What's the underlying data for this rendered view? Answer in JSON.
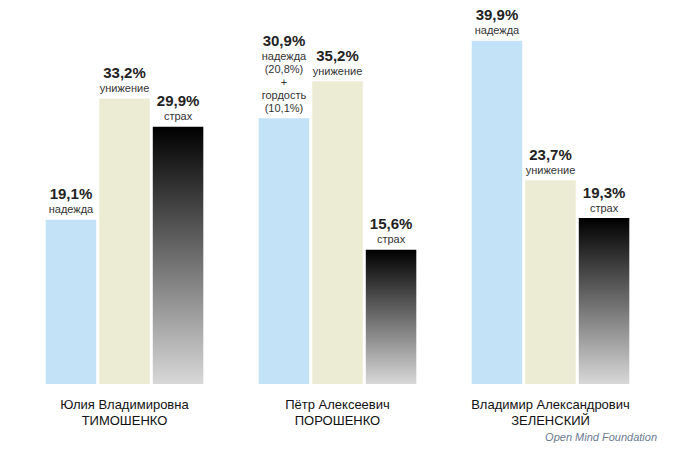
{
  "chart_data": {
    "type": "bar",
    "categories": [
      "Юлия Владимировна\nТИМОШЕНКО",
      "Пётр Алексеевич\nПОРОШЕНКО",
      "Владимир Александрович\nЗЕЛЕНСКИЙ"
    ],
    "series": [
      {
        "name": "надежда",
        "color": "#c4e2f7",
        "values": [
          19.1,
          30.9,
          39.9
        ],
        "value_labels": [
          "19,1%",
          "30,9%",
          "39,9%"
        ],
        "point_labels": [
          null,
          "надежда\n(20,8%)\n+\nгордость\n(10,1%)",
          null
        ]
      },
      {
        "name": "унижение",
        "color": "#ecebd3",
        "values": [
          33.2,
          35.2,
          23.7
        ],
        "value_labels": [
          "33,2%",
          "35,2%",
          "23,7%"
        ]
      },
      {
        "name": "страх",
        "color": "#000000",
        "values": [
          29.9,
          15.6,
          19.3
        ],
        "value_labels": [
          "29,9%",
          "15,6%",
          "19,3%"
        ]
      }
    ],
    "ylim": [
      0,
      40
    ],
    "data_labels": true,
    "tick_labels": "x",
    "grid": false,
    "source": "Open Mind Foundation"
  }
}
